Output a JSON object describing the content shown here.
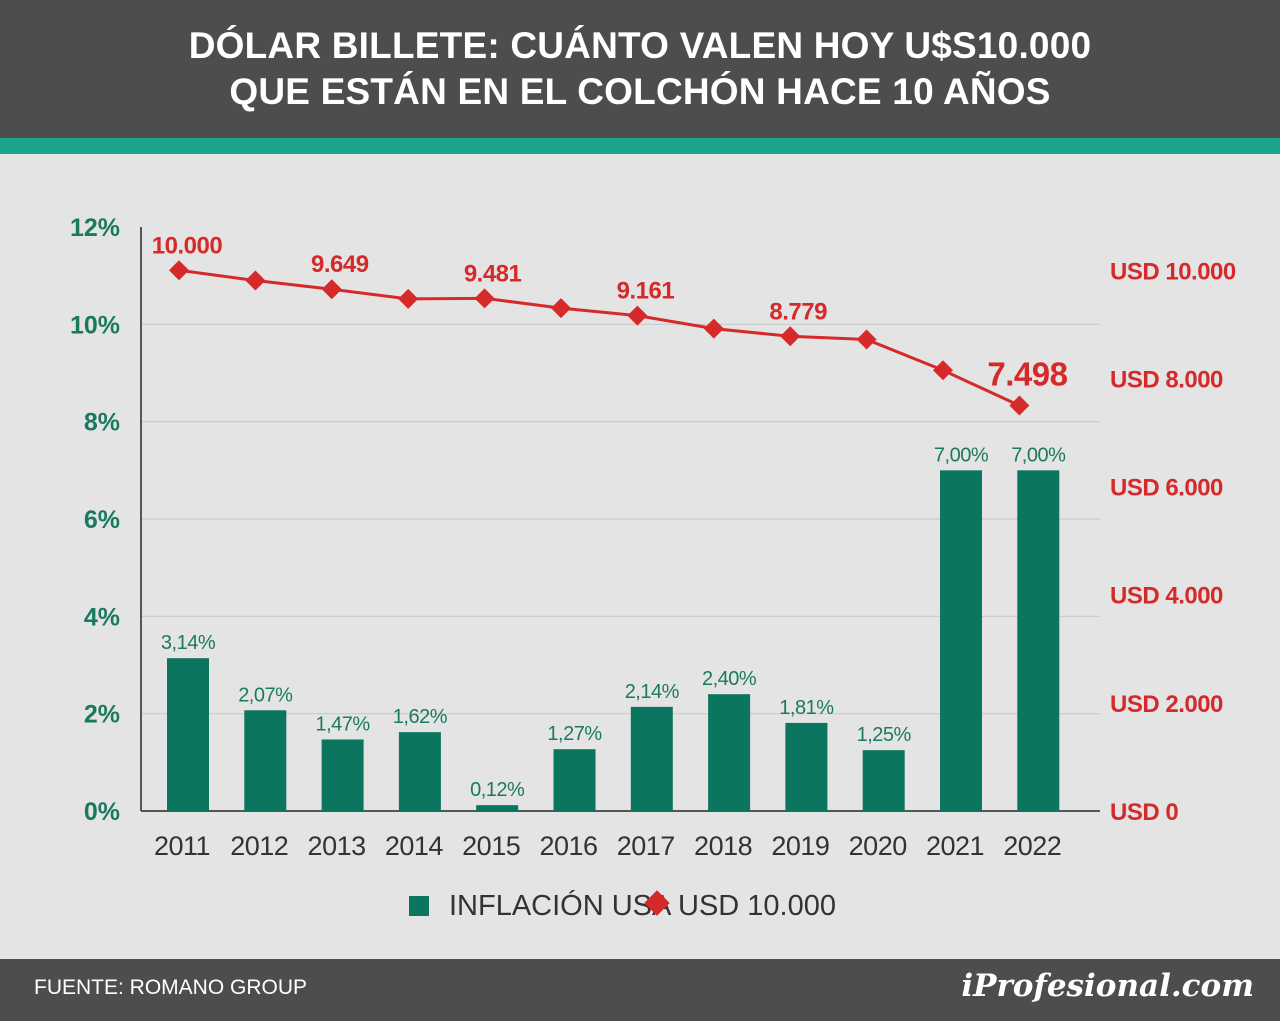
{
  "header": {
    "title_line1": "DÓLAR BILLETE: CUÁNTO VALEN HOY U$S10.000",
    "title_line2": "QUE ESTÁN EN EL COLCHÓN HACE 10 AÑOS"
  },
  "footer": {
    "source": "FUENTE: ROMANO GROUP",
    "logo": "iProfesional.com"
  },
  "colors": {
    "bar": "#0c7560",
    "line": "#d62a2a",
    "left_axis_text": "#1a7a5f",
    "right_axis_text": "#d62a2a",
    "header_bg": "#4d4d4d",
    "accent_strip": "#1aa58c"
  },
  "legend": {
    "bar_label": "INFLACIÓN USA",
    "line_label": "USD 10.000"
  },
  "chart_data": {
    "type": "bar+line",
    "categories": [
      "2011",
      "2012",
      "2013",
      "2014",
      "2015",
      "2016",
      "2017",
      "2018",
      "2019",
      "2020",
      "2021",
      "2022"
    ],
    "series": [
      {
        "name": "INFLACIÓN USA",
        "type": "bar",
        "axis": "left",
        "values": [
          3.14,
          2.07,
          1.47,
          1.62,
          0.12,
          1.27,
          2.14,
          2.4,
          1.81,
          1.25,
          7.0,
          7.0
        ],
        "data_labels": [
          "3,14%",
          "2,07%",
          "1,47%",
          "1,62%",
          "0,12%",
          "1,27%",
          "2,14%",
          "2,40%",
          "1,81%",
          "1,25%",
          "7,00%",
          "7,00%"
        ]
      },
      {
        "name": "USD 10.000",
        "type": "line",
        "axis": "right",
        "values": [
          10000,
          9810,
          9649,
          9470,
          9481,
          9300,
          9161,
          8920,
          8779,
          8720,
          8150,
          7498
        ],
        "data_labels": [
          "10.000",
          "",
          "9.649",
          "",
          "9.481",
          "",
          "9.161",
          "",
          "8.779",
          "",
          "",
          "7.498"
        ]
      }
    ],
    "left_axis": {
      "ylim": [
        0,
        12
      ],
      "ticks": [
        "0%",
        "2%",
        "4%",
        "6%",
        "8%",
        "10%",
        "12%"
      ]
    },
    "right_axis": {
      "ylim": [
        0,
        10800
      ],
      "ticks": [
        "USD 0",
        "USD 2.000",
        "USD 4.000",
        "USD 6.000",
        "USD 8.000",
        "USD 10.000"
      ]
    },
    "grid": true,
    "legend_position": "bottom"
  }
}
